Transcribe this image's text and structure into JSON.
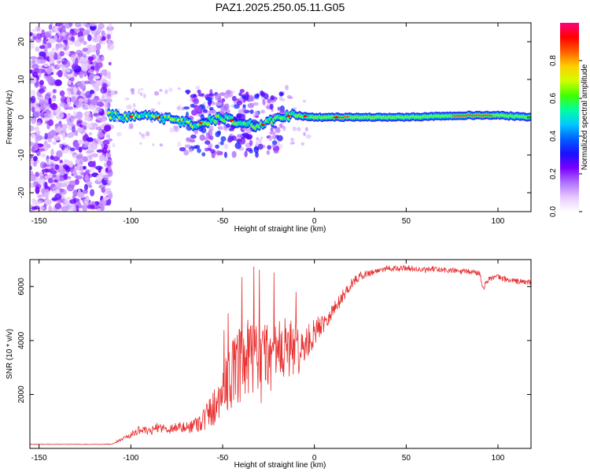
{
  "chart_data": [
    {
      "type": "heatmap",
      "title": "PAZ1.2025.250.05.11.G05",
      "xlabel": "Height of straight line (km)",
      "ylabel": "Frequency (Hz)",
      "xlim": [
        -155,
        118
      ],
      "ylim": [
        -25,
        25
      ],
      "xticks": [
        -150,
        -100,
        -50,
        0,
        50,
        100
      ],
      "xtick_labels": [
        "-150",
        "-100",
        "-50",
        "0",
        "50",
        "100"
      ],
      "yticks": [
        20,
        10,
        0,
        -10,
        -20
      ],
      "ytick_labels": [
        "20",
        "10",
        "0",
        "-10",
        "-20"
      ],
      "colorbar": {
        "label": "Normalized spectral amplitude",
        "range": [
          0,
          1
        ],
        "ticks": [
          0.0,
          0.2,
          0.4,
          0.6,
          0.8
        ],
        "tick_labels": [
          "0.0",
          "0.2",
          "0.4",
          "0.6",
          "0.8"
        ],
        "colors": [
          "#ffffff",
          "#e6c8ff",
          "#b070ff",
          "#7a00ff",
          "#1a10ff",
          "#0060ff",
          "#00c8ff",
          "#00ffa0",
          "#40ff00",
          "#d0ff00",
          "#ffd000",
          "#ff6000",
          "#ff0000",
          "#ff0080"
        ]
      },
      "description_series": [
        {
          "name": "noise region",
          "x_range": [
            -155,
            -112
          ],
          "freq_range": [
            -25,
            25
          ],
          "amplitude": "low (0.05-0.2)"
        },
        {
          "name": "main carrier",
          "x_range": [
            -112,
            118
          ],
          "center_freq_hz": 0,
          "amplitude": "rising from ~0.3 to ~1.0"
        }
      ],
      "carrier_path": [
        {
          "x": -112,
          "f": 0.5
        },
        {
          "x": -100,
          "f": 0.2
        },
        {
          "x": -90,
          "f": 0.3
        },
        {
          "x": -80,
          "f": -0.5
        },
        {
          "x": -70,
          "f": -1.5
        },
        {
          "x": -65,
          "f": -2.0
        },
        {
          "x": -58,
          "f": -1.0
        },
        {
          "x": -50,
          "f": 0.0
        },
        {
          "x": -40,
          "f": -1.5
        },
        {
          "x": -30,
          "f": -2.5
        },
        {
          "x": -20,
          "f": 0.0
        },
        {
          "x": -10,
          "f": 0.5
        },
        {
          "x": 0,
          "f": 0.0
        },
        {
          "x": 20,
          "f": 0.0
        },
        {
          "x": 50,
          "f": 0.0
        },
        {
          "x": 80,
          "f": 0.5
        },
        {
          "x": 100,
          "f": 0.5
        },
        {
          "x": 118,
          "f": 0.0
        }
      ]
    },
    {
      "type": "line",
      "title": "",
      "xlabel": "Height of straight line (km)",
      "ylabel": "SNR (10 * v/v)",
      "xlim": [
        -155,
        118
      ],
      "ylim": [
        0,
        7000
      ],
      "xticks": [
        -150,
        -100,
        -50,
        0,
        50,
        100
      ],
      "xtick_labels": [
        "-150",
        "-100",
        "-50",
        "0",
        "50",
        "100"
      ],
      "yticks": [
        2000,
        4000,
        6000
      ],
      "ytick_labels": [
        "2000",
        "4000",
        "6000"
      ],
      "color": "#e83030",
      "series": [
        {
          "name": "SNR envelope",
          "x": [
            -155,
            -140,
            -120,
            -110,
            -105,
            -100,
            -95,
            -90,
            -85,
            -80,
            -75,
            -70,
            -65,
            -60,
            -55,
            -50,
            -45,
            -40,
            -35,
            -30,
            -25,
            -20,
            -15,
            -10,
            -5,
            0,
            5,
            10,
            15,
            20,
            25,
            30,
            35,
            40,
            45,
            50,
            55,
            60,
            65,
            70,
            75,
            80,
            85,
            90,
            92,
            95,
            100,
            105,
            110,
            118
          ],
          "y": [
            150,
            150,
            150,
            150,
            350,
            500,
            700,
            600,
            800,
            700,
            800,
            750,
            900,
            1100,
            1500,
            2200,
            2700,
            3000,
            3300,
            3100,
            3500,
            3400,
            3800,
            3600,
            3800,
            4300,
            4700,
            5100,
            5600,
            6100,
            6400,
            6500,
            6600,
            6700,
            6650,
            6700,
            6650,
            6600,
            6650,
            6600,
            6600,
            6550,
            6550,
            6500,
            5950,
            6300,
            6350,
            6250,
            6200,
            6150
          ],
          "noise": [
            10,
            10,
            10,
            20,
            60,
            120,
            150,
            150,
            180,
            180,
            200,
            220,
            300,
            500,
            700,
            900,
            1300,
            1500,
            1600,
            1600,
            1400,
            1400,
            1200,
            1000,
            700,
            500,
            400,
            300,
            250,
            200,
            150,
            130,
            120,
            110,
            110,
            110,
            110,
            110,
            110,
            110,
            110,
            110,
            110,
            110,
            110,
            110,
            110,
            110,
            110,
            110
          ]
        }
      ]
    }
  ]
}
